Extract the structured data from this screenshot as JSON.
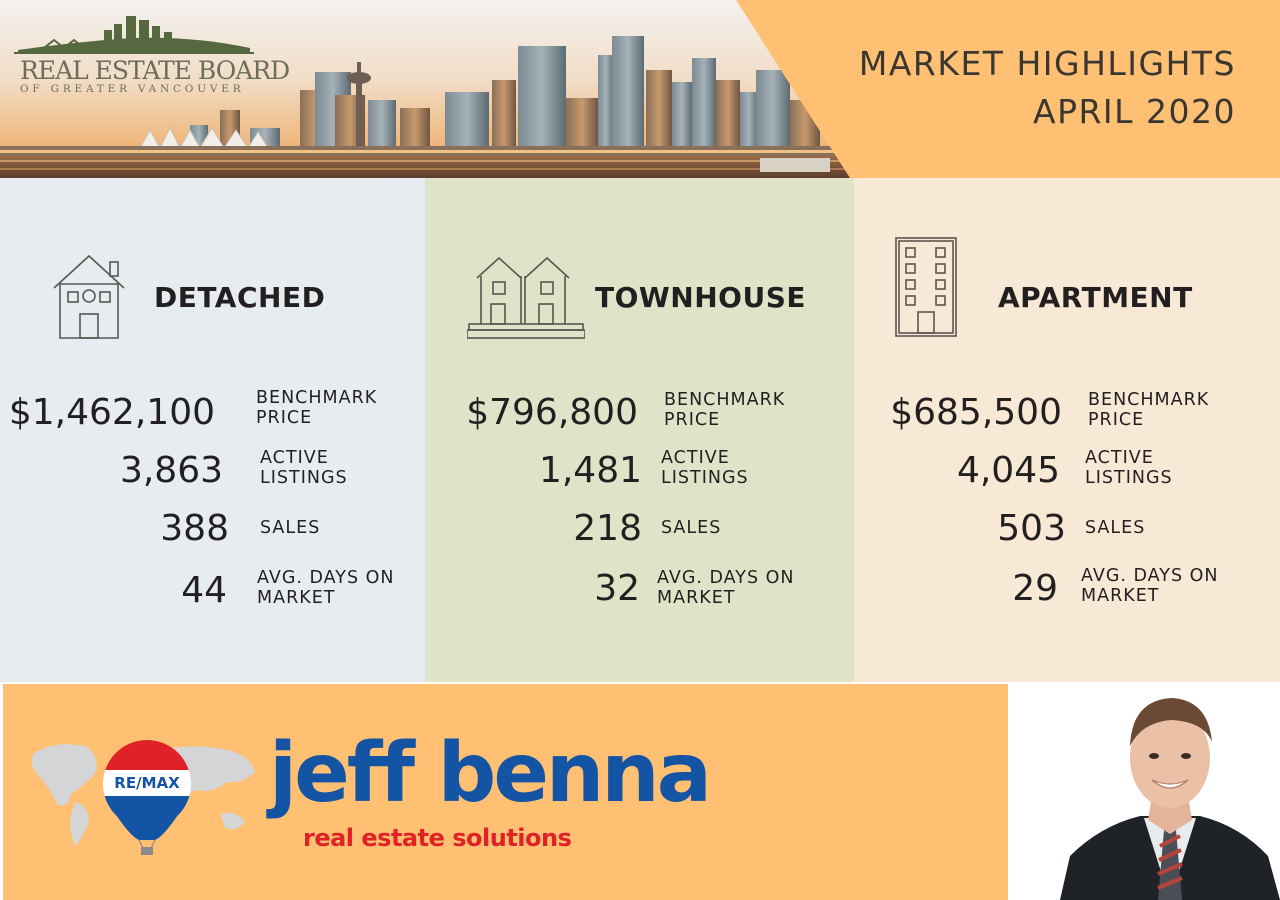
{
  "header": {
    "logo": {
      "name": "REAL ESTATE BOARD",
      "subtitle": "OF GREATER VANCOUVER"
    },
    "highlights_line1": "MARKET HIGHLIGHTS",
    "highlights_line2": "APRIL 2020",
    "accent_color": "#ffc073"
  },
  "columns": [
    {
      "title": "DETACHED",
      "icon": "house-icon",
      "background": "#e7ecf0",
      "benchmark_price": "$1,462,100",
      "benchmark_label_1": "BENCHMARK",
      "benchmark_label_2": "PRICE",
      "active_listings": "3,863",
      "active_label_1": "ACTIVE",
      "active_label_2": "LISTINGS",
      "sales": "388",
      "sales_label": "SALES",
      "days_on_market": "44",
      "days_label_1": "AVG. DAYS ON",
      "days_label_2": "MARKET"
    },
    {
      "title": "TOWNHOUSE",
      "icon": "townhouse-icon",
      "background": "#dfe4c9",
      "benchmark_price": "$796,800",
      "benchmark_label_1": "BENCHMARK",
      "benchmark_label_2": "PRICE",
      "active_listings": "1,481",
      "active_label_1": "ACTIVE",
      "active_label_2": "LISTINGS",
      "sales": "218",
      "sales_label": "SALES",
      "days_on_market": "32",
      "days_label_1": "AVG. DAYS ON",
      "days_label_2": "MARKET"
    },
    {
      "title": "APARTMENT",
      "icon": "apartment-building-icon",
      "background": "#f8e8d6",
      "benchmark_price": "$685,500",
      "benchmark_label_1": "BENCHMARK",
      "benchmark_label_2": "PRICE",
      "active_listings": "4,045",
      "active_label_1": "ACTIVE",
      "active_label_2": "LISTINGS",
      "sales": "503",
      "sales_label": "SALES",
      "days_on_market": "29",
      "days_label_1": "AVG. DAYS ON",
      "days_label_2": "MARKET"
    }
  ],
  "footer": {
    "balloon_label": "RE/MAX",
    "brand_name": "jeff benna",
    "tagline": "real estate solutions",
    "brand_color": "#1354a4",
    "tagline_color": "#e02126",
    "banner_color": "#ffc073"
  }
}
